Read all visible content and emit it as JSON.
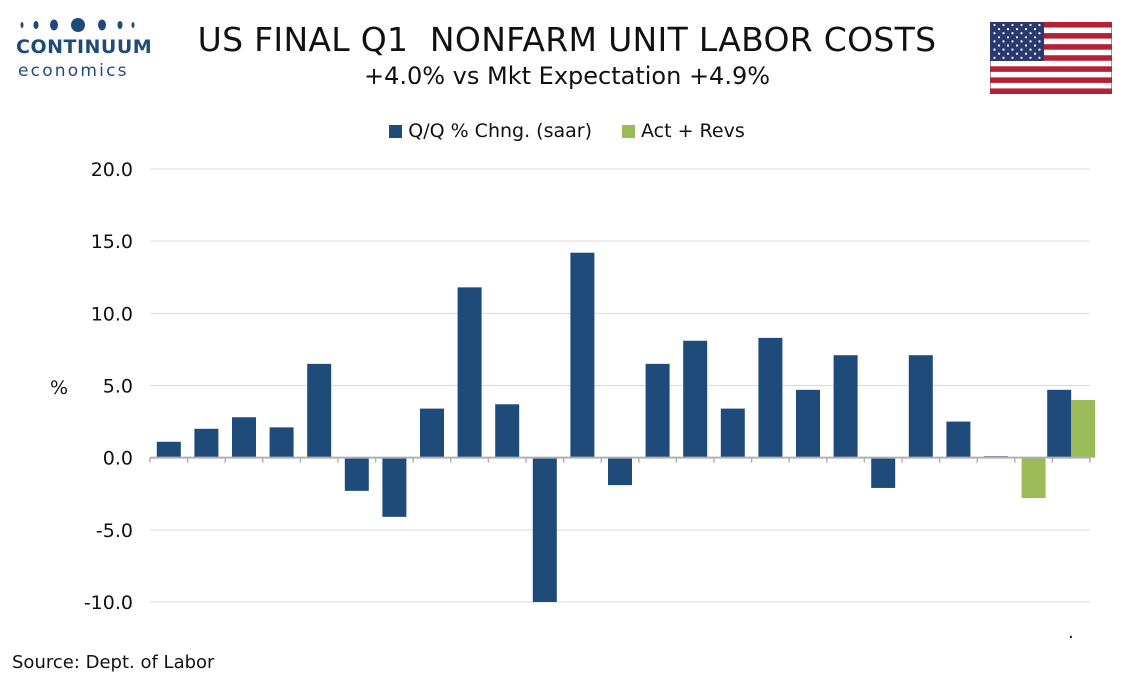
{
  "logo": {
    "line1": "CONTINUUM",
    "line2": "economics",
    "color": "#1f4b7a"
  },
  "flag": {
    "icon": "us-flag-icon"
  },
  "chart_data": {
    "type": "bar",
    "title": "US FINAL Q1  NONFARM UNIT LABOR COSTS",
    "subtitle": "+4.0% vs Mkt Expectation +4.9%",
    "ylabel": "%",
    "xlabel": "",
    "ylim": [
      -10,
      20
    ],
    "yticks": [
      20.0,
      15.0,
      10.0,
      5.0,
      0.0,
      -5.0,
      -10.0
    ],
    "ytick_labels": [
      "20.0",
      "15.0",
      "10.0",
      "5.0",
      "0.0",
      "-5.0",
      "-10.0"
    ],
    "grid": true,
    "legend_position": "top-center",
    "series": [
      {
        "name": "Q/Q % Chng. (saar)",
        "color": "#1f4b7a",
        "values": [
          1.1,
          2.0,
          2.8,
          2.1,
          6.5,
          -2.3,
          -4.1,
          3.4,
          11.8,
          3.7,
          -10.0,
          14.2,
          -1.9,
          6.5,
          8.1,
          3.4,
          8.3,
          4.7,
          7.1,
          -2.1,
          7.1,
          2.5,
          0.1,
          null,
          4.7
        ]
      },
      {
        "name": "Act + Revs",
        "color": "#9bbb59",
        "values": [
          null,
          null,
          null,
          null,
          null,
          null,
          null,
          null,
          null,
          null,
          null,
          null,
          null,
          null,
          null,
          null,
          null,
          null,
          null,
          null,
          null,
          null,
          null,
          -2.8,
          4.0
        ]
      }
    ]
  },
  "footer": {
    "source": "Source: Dept. of Labor",
    "mark": "."
  }
}
